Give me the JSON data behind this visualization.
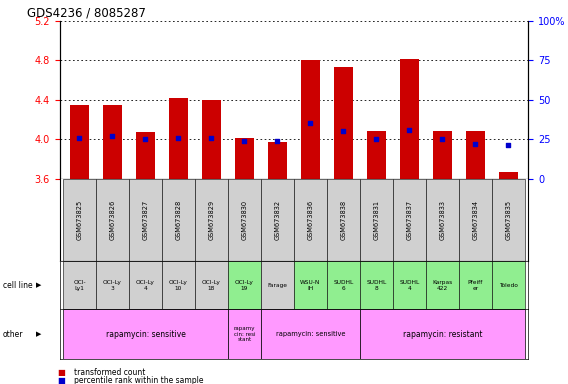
{
  "title": "GDS4236 / 8085287",
  "samples": [
    "GSM673825",
    "GSM673826",
    "GSM673827",
    "GSM673828",
    "GSM673829",
    "GSM673830",
    "GSM673832",
    "GSM673836",
    "GSM673838",
    "GSM673831",
    "GSM673837",
    "GSM673833",
    "GSM673834",
    "GSM673835"
  ],
  "transformed_count": [
    4.35,
    4.35,
    4.07,
    4.42,
    4.4,
    4.01,
    3.97,
    4.8,
    4.73,
    4.08,
    4.82,
    4.08,
    4.08,
    3.67
  ],
  "percentile_rank": [
    26,
    27,
    25,
    26,
    26,
    24,
    24,
    35,
    30,
    25,
    31,
    25,
    22,
    21
  ],
  "ylim": [
    3.6,
    5.2
  ],
  "yticks_left": [
    3.6,
    4.0,
    4.4,
    4.8,
    5.2
  ],
  "yticks_right": [
    0,
    25,
    50,
    75,
    100
  ],
  "bar_color": "#cc0000",
  "dot_color": "#0000cc",
  "cell_lines": [
    "OCI-\nLy1",
    "OCI-Ly\n3",
    "OCI-Ly\n4",
    "OCI-Ly\n10",
    "OCI-Ly\n18",
    "OCI-Ly\n19",
    "Farage",
    "WSU-N\nIH",
    "SUDHL\n6",
    "SUDHL\n8",
    "SUDHL\n4",
    "Karpas\n422",
    "Pfeiff\ner",
    "Toledo"
  ],
  "cell_line_colors": [
    "#d0d0d0",
    "#d0d0d0",
    "#d0d0d0",
    "#d0d0d0",
    "#d0d0d0",
    "#90ee90",
    "#d0d0d0",
    "#90ee90",
    "#90ee90",
    "#90ee90",
    "#90ee90",
    "#90ee90",
    "#90ee90",
    "#90ee90"
  ],
  "legend_items": [
    {
      "color": "#cc0000",
      "label": "transformed count"
    },
    {
      "color": "#0000cc",
      "label": "percentile rank within the sample"
    }
  ],
  "bar_bottom": 3.6
}
